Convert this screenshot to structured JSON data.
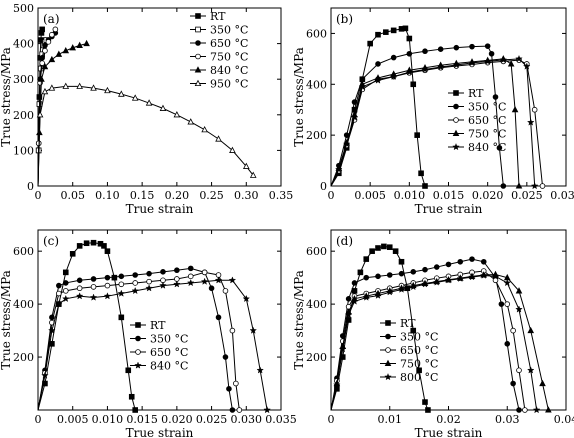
{
  "chart_data": [
    {
      "type": "line",
      "panel_label": "(a)",
      "xlabel": "True strain",
      "ylabel": "True stress/MPa",
      "xlim": [
        0,
        0.35
      ],
      "ylim": [
        0,
        500
      ],
      "xticks": [
        "0",
        "0.05",
        "0.10",
        "0.15",
        "0.20",
        "0.25",
        "0.30",
        "0.35"
      ],
      "yticks": [
        "0",
        "100",
        "200",
        "300",
        "400",
        "500"
      ],
      "legend_position": "top-right",
      "series": [
        {
          "name": "RT",
          "marker": "filled-square",
          "x": [
            0,
            0.001,
            0.002,
            0.003,
            0.004,
            0.005,
            0.006
          ],
          "y": [
            0,
            100,
            250,
            360,
            410,
            430,
            440
          ]
        },
        {
          "name": "350 °C",
          "marker": "open-square",
          "x": [
            0,
            0.001,
            0.002,
            0.004,
            0.006,
            0.008,
            0.01,
            0.012
          ],
          "y": [
            0,
            100,
            230,
            330,
            370,
            395,
            405,
            410
          ]
        },
        {
          "name": "650 °C",
          "marker": "filled-circle",
          "x": [
            0,
            0.001,
            0.003,
            0.006,
            0.01,
            0.015,
            0.02,
            0.025
          ],
          "y": [
            0,
            120,
            300,
            360,
            395,
            410,
            420,
            430
          ]
        },
        {
          "name": "750 °C",
          "marker": "open-circle",
          "x": [
            0,
            0.001,
            0.003,
            0.006,
            0.01,
            0.015,
            0.02,
            0.025
          ],
          "y": [
            0,
            120,
            290,
            345,
            380,
            405,
            425,
            440
          ]
        },
        {
          "name": "840 °C",
          "marker": "filled-triangle",
          "x": [
            0,
            0.002,
            0.005,
            0.01,
            0.02,
            0.03,
            0.04,
            0.05,
            0.06,
            0.07
          ],
          "y": [
            0,
            150,
            300,
            335,
            355,
            370,
            380,
            388,
            395,
            400
          ]
        },
        {
          "name": "950 °C",
          "marker": "open-triangle",
          "x": [
            0,
            0.003,
            0.01,
            0.02,
            0.04,
            0.06,
            0.08,
            0.1,
            0.12,
            0.14,
            0.16,
            0.18,
            0.2,
            0.22,
            0.24,
            0.26,
            0.28,
            0.3,
            0.31
          ],
          "y": [
            0,
            200,
            265,
            275,
            280,
            280,
            275,
            268,
            258,
            247,
            233,
            218,
            200,
            180,
            158,
            132,
            100,
            55,
            30
          ]
        }
      ]
    },
    {
      "type": "line",
      "panel_label": "(b)",
      "xlabel": "True strain",
      "ylabel": "True stress/MPa",
      "xlim": [
        0,
        0.03
      ],
      "ylim": [
        0,
        700
      ],
      "xticks": [
        "0",
        "0.005",
        "0.010",
        "0.015",
        "0.020",
        "0.025",
        "0.030"
      ],
      "yticks": [
        "0",
        "200",
        "400",
        "600"
      ],
      "legend_position": "center-right",
      "series": [
        {
          "name": "RT",
          "marker": "filled-square",
          "x": [
            0,
            0.001,
            0.002,
            0.003,
            0.004,
            0.005,
            0.006,
            0.007,
            0.008,
            0.009,
            0.0095,
            0.01,
            0.0105,
            0.011,
            0.0115,
            0.012
          ],
          "y": [
            0,
            50,
            150,
            300,
            420,
            560,
            595,
            605,
            612,
            618,
            620,
            580,
            400,
            200,
            50,
            0
          ]
        },
        {
          "name": "350 °C",
          "marker": "filled-circle",
          "x": [
            0,
            0.001,
            0.002,
            0.003,
            0.004,
            0.006,
            0.008,
            0.01,
            0.012,
            0.014,
            0.016,
            0.018,
            0.02,
            0.0205,
            0.021,
            0.0215,
            0.022
          ],
          "y": [
            0,
            80,
            200,
            330,
            420,
            480,
            505,
            520,
            530,
            538,
            544,
            548,
            550,
            520,
            350,
            150,
            0
          ]
        },
        {
          "name": "650 °C",
          "marker": "open-circle",
          "x": [
            0,
            0.001,
            0.002,
            0.003,
            0.004,
            0.006,
            0.008,
            0.01,
            0.012,
            0.014,
            0.016,
            0.018,
            0.02,
            0.022,
            0.024,
            0.025,
            0.026,
            0.027
          ],
          "y": [
            0,
            60,
            160,
            260,
            380,
            420,
            430,
            445,
            455,
            465,
            472,
            478,
            485,
            490,
            495,
            480,
            300,
            0
          ]
        },
        {
          "name": "750 °C",
          "marker": "filled-triangle",
          "x": [
            0,
            0.001,
            0.002,
            0.003,
            0.004,
            0.006,
            0.008,
            0.01,
            0.012,
            0.014,
            0.016,
            0.018,
            0.02,
            0.022,
            0.023,
            0.0235,
            0.024
          ],
          "y": [
            0,
            70,
            170,
            280,
            400,
            425,
            440,
            455,
            465,
            475,
            482,
            488,
            494,
            500,
            480,
            300,
            0
          ]
        },
        {
          "name": "840 °C",
          "marker": "filled-star",
          "x": [
            0,
            0.001,
            0.002,
            0.003,
            0.004,
            0.006,
            0.008,
            0.01,
            0.012,
            0.014,
            0.016,
            0.018,
            0.02,
            0.022,
            0.024,
            0.025,
            0.0255,
            0.026
          ],
          "y": [
            0,
            65,
            165,
            270,
            390,
            415,
            430,
            448,
            458,
            468,
            476,
            484,
            490,
            496,
            500,
            470,
            250,
            0
          ]
        }
      ]
    },
    {
      "type": "line",
      "panel_label": "(c)",
      "xlabel": "True strain",
      "ylabel": "True stress/MPa",
      "xlim": [
        0,
        0.035
      ],
      "ylim": [
        0,
        680
      ],
      "xticks": [
        "0",
        "0.005",
        "0.010",
        "0.015",
        "0.020",
        "0.025",
        "0.030",
        "0.035"
      ],
      "yticks": [
        "200",
        "400",
        "600"
      ],
      "legend_position": "bottom-right",
      "series": [
        {
          "name": "RT",
          "marker": "filled-square",
          "x": [
            0,
            0.001,
            0.002,
            0.003,
            0.004,
            0.005,
            0.006,
            0.007,
            0.008,
            0.009,
            0.0095,
            0.01,
            0.011,
            0.012,
            0.013,
            0.0135,
            0.014
          ],
          "y": [
            0,
            100,
            250,
            400,
            520,
            590,
            620,
            630,
            632,
            628,
            620,
            600,
            500,
            350,
            150,
            50,
            0
          ]
        },
        {
          "name": "350 °C",
          "marker": "filled-circle",
          "x": [
            0,
            0.001,
            0.002,
            0.003,
            0.004,
            0.006,
            0.008,
            0.01,
            0.012,
            0.014,
            0.016,
            0.018,
            0.02,
            0.022,
            0.024,
            0.025,
            0.026,
            0.027,
            0.0275,
            0.028
          ],
          "y": [
            0,
            150,
            350,
            470,
            480,
            490,
            495,
            500,
            505,
            510,
            515,
            522,
            528,
            535,
            520,
            460,
            350,
            200,
            80,
            0
          ]
        },
        {
          "name": "650 °C",
          "marker": "open-circle",
          "x": [
            0,
            0.001,
            0.002,
            0.003,
            0.004,
            0.006,
            0.008,
            0.01,
            0.012,
            0.014,
            0.016,
            0.018,
            0.02,
            0.022,
            0.024,
            0.026,
            0.027,
            0.028,
            0.0285,
            0.029
          ],
          "y": [
            0,
            140,
            330,
            440,
            450,
            460,
            465,
            470,
            475,
            480,
            485,
            490,
            495,
            505,
            520,
            510,
            450,
            300,
            100,
            0
          ]
        },
        {
          "name": "840 °C",
          "marker": "filled-star",
          "x": [
            0,
            0.001,
            0.002,
            0.003,
            0.004,
            0.006,
            0.008,
            0.01,
            0.012,
            0.014,
            0.016,
            0.018,
            0.02,
            0.022,
            0.024,
            0.026,
            0.028,
            0.03,
            0.031,
            0.032,
            0.033
          ],
          "y": [
            0,
            130,
            300,
            400,
            420,
            430,
            425,
            430,
            440,
            450,
            460,
            470,
            475,
            480,
            485,
            490,
            490,
            420,
            300,
            150,
            0
          ]
        }
      ]
    },
    {
      "type": "line",
      "panel_label": "(d)",
      "xlabel": "True strain",
      "ylabel": "True stress/MPa",
      "xlim": [
        0,
        0.04
      ],
      "ylim": [
        0,
        680
      ],
      "xticks": [
        "0",
        "0.01",
        "0.02",
        "0.03",
        "0.04"
      ],
      "yticks": [
        "200",
        "400",
        "600"
      ],
      "legend_position": "bottom-left",
      "series": [
        {
          "name": "RT",
          "marker": "filled-square",
          "x": [
            0,
            0.001,
            0.002,
            0.003,
            0.004,
            0.005,
            0.006,
            0.007,
            0.008,
            0.009,
            0.01,
            0.011,
            0.012,
            0.013,
            0.014,
            0.015,
            0.016,
            0.0165
          ],
          "y": [
            0,
            80,
            200,
            340,
            450,
            520,
            570,
            600,
            612,
            618,
            615,
            600,
            560,
            460,
            300,
            150,
            30,
            0
          ]
        },
        {
          "name": "350 °C",
          "marker": "filled-circle",
          "x": [
            0,
            0.001,
            0.002,
            0.003,
            0.004,
            0.006,
            0.008,
            0.01,
            0.012,
            0.014,
            0.016,
            0.018,
            0.02,
            0.022,
            0.024,
            0.026,
            0.028,
            0.029,
            0.03,
            0.031,
            0.032
          ],
          "y": [
            0,
            120,
            280,
            420,
            480,
            500,
            505,
            510,
            515,
            522,
            530,
            540,
            550,
            560,
            570,
            560,
            500,
            400,
            250,
            100,
            0
          ]
        },
        {
          "name": "650 °C",
          "marker": "open-circle",
          "x": [
            0,
            0.001,
            0.002,
            0.003,
            0.004,
            0.006,
            0.008,
            0.01,
            0.012,
            0.014,
            0.016,
            0.018,
            0.02,
            0.022,
            0.024,
            0.026,
            0.028,
            0.03,
            0.031,
            0.032,
            0.033
          ],
          "y": [
            0,
            110,
            260,
            390,
            430,
            440,
            450,
            460,
            470,
            480,
            490,
            498,
            505,
            512,
            520,
            525,
            490,
            400,
            300,
            150,
            0
          ]
        },
        {
          "name": "750 °C",
          "marker": "filled-triangle",
          "x": [
            0,
            0.001,
            0.002,
            0.003,
            0.004,
            0.006,
            0.008,
            0.01,
            0.012,
            0.014,
            0.016,
            0.018,
            0.02,
            0.022,
            0.024,
            0.026,
            0.028,
            0.03,
            0.032,
            0.034,
            0.036,
            0.037
          ],
          "y": [
            0,
            100,
            240,
            370,
            420,
            430,
            440,
            450,
            460,
            470,
            478,
            485,
            492,
            498,
            505,
            510,
            512,
            500,
            450,
            300,
            100,
            0
          ]
        },
        {
          "name": "800 °C",
          "marker": "filled-star",
          "x": [
            0,
            0.001,
            0.002,
            0.003,
            0.004,
            0.006,
            0.008,
            0.01,
            0.012,
            0.014,
            0.016,
            0.018,
            0.02,
            0.022,
            0.024,
            0.026,
            0.028,
            0.03,
            0.032,
            0.034,
            0.035
          ],
          "y": [
            0,
            95,
            230,
            360,
            410,
            425,
            432,
            445,
            455,
            465,
            475,
            482,
            490,
            496,
            502,
            508,
            505,
            480,
            380,
            150,
            0
          ]
        }
      ]
    }
  ]
}
